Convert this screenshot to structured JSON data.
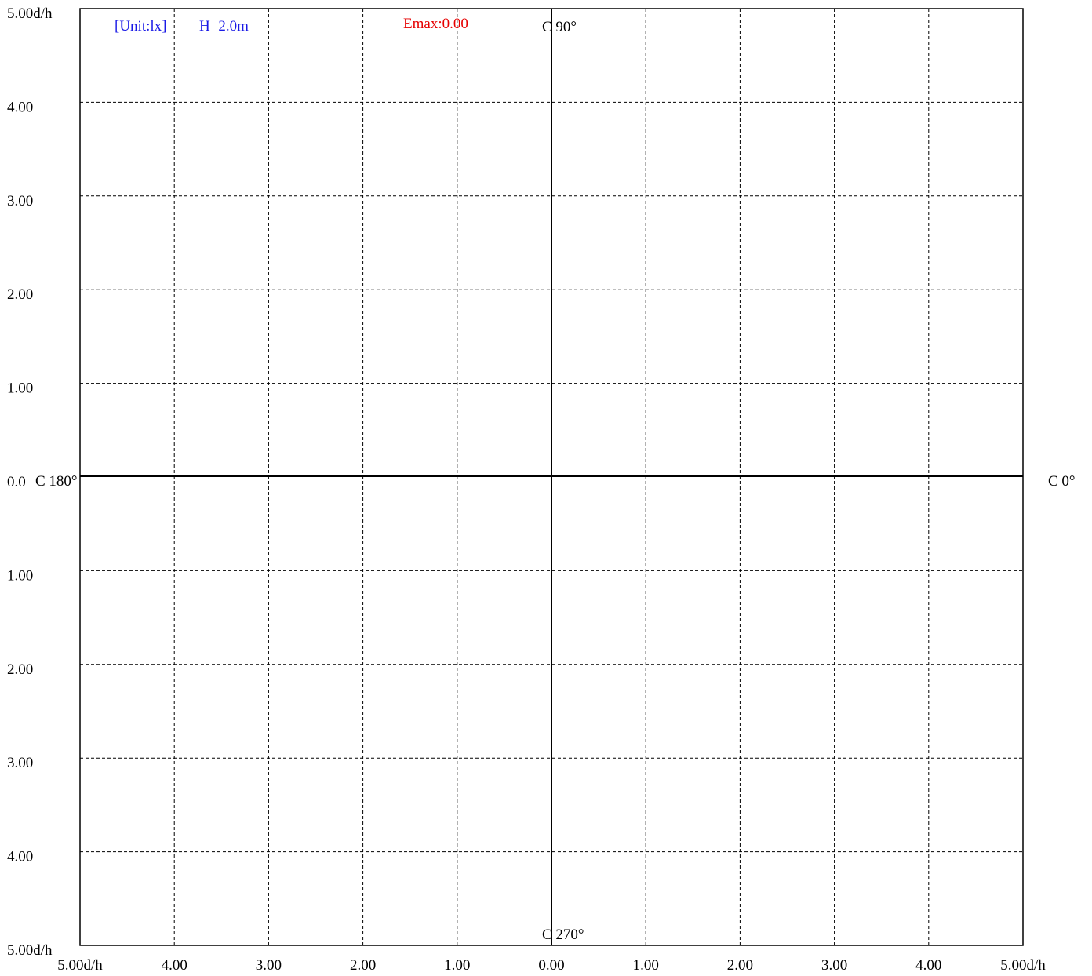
{
  "chart_data": {
    "type": "isolux",
    "unit_note": "[Unit:lx]",
    "height_note": "H=2.0m",
    "emax_label": "Emax:0.00",
    "xlim": [
      -5,
      5
    ],
    "ylim": [
      -5,
      5
    ],
    "grid": true,
    "x_tick_labels": [
      "5.00d/h",
      "4.00",
      "3.00",
      "2.00",
      "1.00",
      "0.00",
      "1.00",
      "2.00",
      "3.00",
      "4.00",
      "5.00d/h"
    ],
    "y_tick_labels": [
      "5.00d/h",
      "4.00",
      "3.00",
      "2.00",
      "1.00",
      "0.0",
      "1.00",
      "2.00",
      "3.00",
      "4.00",
      "5.00d/h"
    ],
    "direction_labels": {
      "top": "C 90°",
      "bottom": "C 270°",
      "left": "C 180°",
      "right": "C 0°"
    },
    "colors": {
      "note": "#1a1ae6",
      "emax": "#e60000",
      "axes": "#000000"
    }
  }
}
